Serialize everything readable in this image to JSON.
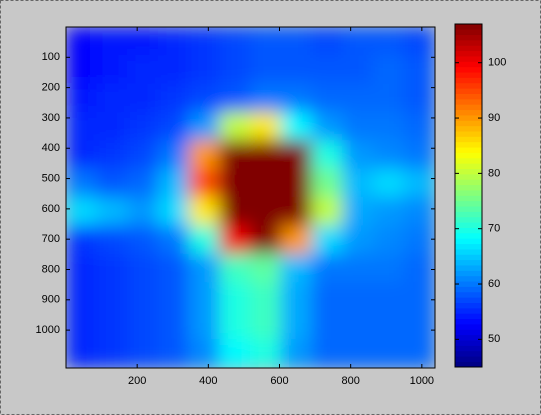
{
  "chart_data": {
    "type": "heatmap",
    "colormap": "jet",
    "xlim": [
      0,
      1037
    ],
    "ylim": [
      0,
      1125
    ],
    "y_reversed": true,
    "xticks": [
      200,
      400,
      600,
      800,
      1000
    ],
    "yticks": [
      100,
      200,
      300,
      400,
      500,
      600,
      700,
      800,
      900,
      1000
    ],
    "clim": [
      45,
      107
    ],
    "cticks": [
      50,
      60,
      70,
      80,
      90,
      100
    ],
    "values": [
      [
        53,
        54,
        54,
        55,
        56,
        57,
        58,
        58,
        57,
        58,
        58,
        57
      ],
      [
        53,
        54,
        55,
        55,
        56,
        57,
        58,
        58,
        58,
        58,
        59,
        58
      ],
      [
        54,
        55,
        55,
        56,
        57,
        58,
        60,
        60,
        59,
        59,
        59,
        58
      ],
      [
        55,
        55,
        56,
        57,
        62,
        80,
        85,
        68,
        62,
        60,
        60,
        59
      ],
      [
        55,
        56,
        57,
        60,
        90,
        107,
        107,
        107,
        70,
        62,
        61,
        60
      ],
      [
        60,
        58,
        59,
        64,
        95,
        107,
        107,
        107,
        75,
        64,
        66,
        64
      ],
      [
        66,
        64,
        62,
        66,
        85,
        107,
        107,
        107,
        80,
        63,
        62,
        61
      ],
      [
        56,
        57,
        58,
        60,
        70,
        100,
        107,
        90,
        66,
        62,
        61,
        60
      ],
      [
        55,
        56,
        57,
        58,
        62,
        72,
        74,
        64,
        60,
        60,
        60,
        59
      ],
      [
        55,
        56,
        57,
        58,
        62,
        70,
        72,
        63,
        59,
        59,
        59,
        59
      ],
      [
        55,
        56,
        57,
        58,
        62,
        70,
        72,
        63,
        59,
        59,
        59,
        59
      ],
      [
        55,
        56,
        57,
        58,
        61,
        68,
        70,
        62,
        59,
        59,
        59,
        59
      ]
    ]
  }
}
